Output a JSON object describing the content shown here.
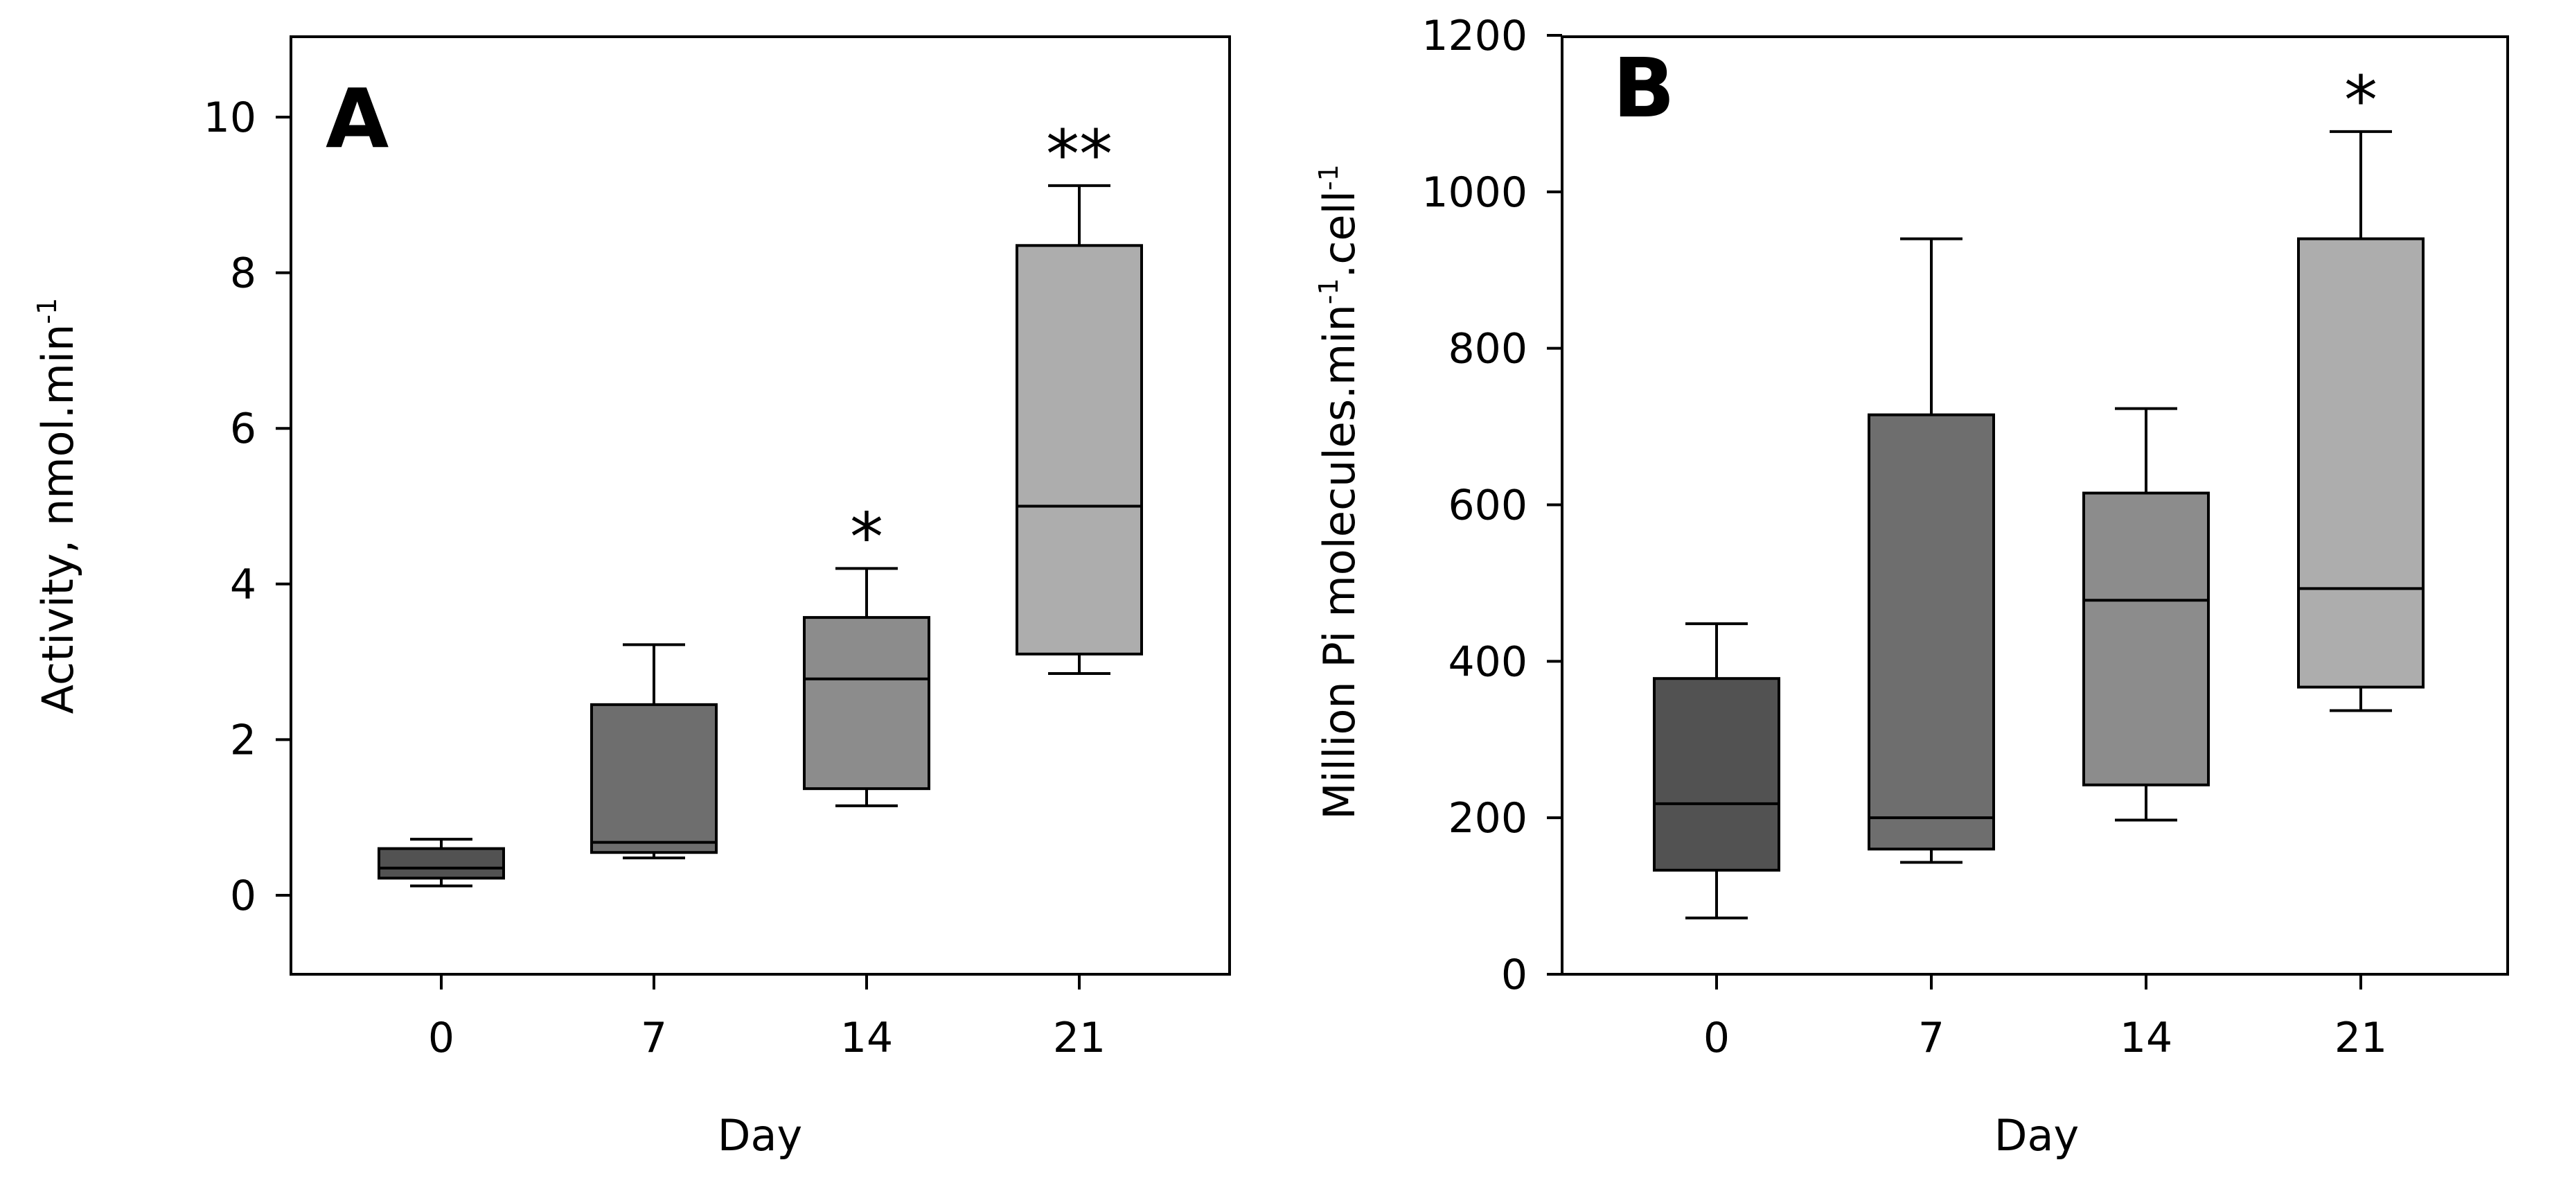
{
  "chart_data": [
    {
      "type": "boxplot",
      "panel_label": "A",
      "xlabel": "Day",
      "ylabel": "Activity, nmol.min",
      "ylabel_superscript": "-1",
      "ylim": [
        -1,
        11
      ],
      "yticks": [
        0,
        2,
        4,
        6,
        8,
        10
      ],
      "categories": [
        "0",
        "7",
        "14",
        "21"
      ],
      "boxes": [
        {
          "category": "0",
          "whisker_low": 0.12,
          "q1": 0.22,
          "median": 0.35,
          "q3": 0.6,
          "whisker_high": 0.72,
          "significance": "",
          "color": "#525252"
        },
        {
          "category": "7",
          "whisker_low": 0.48,
          "q1": 0.55,
          "median": 0.68,
          "q3": 2.45,
          "whisker_high": 3.22,
          "significance": "",
          "color": "#6e6e6e"
        },
        {
          "category": "14",
          "whisker_low": 1.15,
          "q1": 1.37,
          "median": 2.78,
          "q3": 3.57,
          "whisker_high": 4.2,
          "significance": "*",
          "color": "#8c8c8c"
        },
        {
          "category": "21",
          "whisker_low": 2.85,
          "q1": 3.1,
          "median": 5.0,
          "q3": 8.35,
          "whisker_high": 9.12,
          "significance": "**",
          "color": "#adadad"
        }
      ]
    },
    {
      "type": "boxplot",
      "panel_label": "B",
      "xlabel": "Day",
      "ylabel": "Million Pi molecules.min",
      "ylabel_superscript": "-1",
      "ylabel_mid": ".cell",
      "ylabel_superscript2": "-1",
      "ylim": [
        0,
        1200
      ],
      "yticks": [
        0,
        200,
        400,
        600,
        800,
        1000,
        1200
      ],
      "categories": [
        "0",
        "7",
        "14",
        "21"
      ],
      "boxes": [
        {
          "category": "0",
          "whisker_low": 72,
          "q1": 133,
          "median": 218,
          "q3": 378,
          "whisker_high": 448,
          "significance": "",
          "color": "#525252"
        },
        {
          "category": "7",
          "whisker_low": 143,
          "q1": 160,
          "median": 200,
          "q3": 715,
          "whisker_high": 940,
          "significance": "",
          "color": "#6e6e6e"
        },
        {
          "category": "14",
          "whisker_low": 197,
          "q1": 242,
          "median": 478,
          "q3": 615,
          "whisker_high": 723,
          "significance": "",
          "color": "#8c8c8c"
        },
        {
          "category": "21",
          "whisker_low": 337,
          "q1": 367,
          "median": 493,
          "q3": 940,
          "whisker_high": 1077,
          "significance": "*",
          "color": "#adadad"
        }
      ]
    }
  ]
}
